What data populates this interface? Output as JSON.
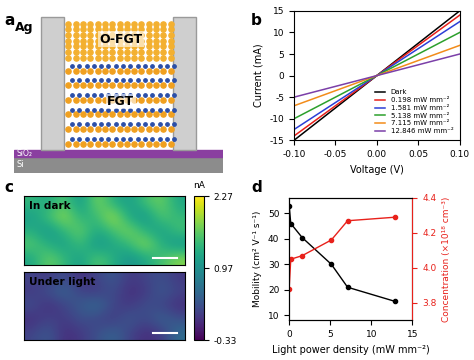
{
  "panel_labels": [
    "a",
    "b",
    "c",
    "d"
  ],
  "diagram": {
    "labels": {
      "ag": "Ag",
      "ofgt": "O-FGT",
      "fgt": "FGT",
      "sio2": "SiO₂",
      "si": "Si"
    }
  },
  "chart_data": [
    {
      "type": "line",
      "x": [
        -0.1,
        -0.05,
        0,
        0.05,
        0.1
      ],
      "xlabel": "Voltage (V)",
      "ylabel": "Current (mA)",
      "xlim": [
        -0.1,
        0.1
      ],
      "xticks": [
        {
          "value": -0.1,
          "label": "-0.10"
        },
        {
          "value": -0.05,
          "label": "-0.05"
        },
        {
          "value": 0,
          "label": "0.00"
        },
        {
          "value": 0.05,
          "label": "0.05"
        },
        {
          "value": 0.1,
          "label": "0.10"
        }
      ],
      "ylim": [
        -15,
        15
      ],
      "yticks": [
        -15,
        -10,
        -5,
        0,
        5,
        10,
        15
      ],
      "legend": "lower right",
      "series": [
        {
          "name": "Dark",
          "color": "#000000",
          "values": [
            -15.0,
            -7.5,
            0,
            7.5,
            15.0
          ]
        },
        {
          "name": "0.198 mW mm⁻²",
          "color": "#e8211b",
          "values": [
            -14.0,
            -7.0,
            0,
            7.0,
            14.0
          ]
        },
        {
          "name": "1.581 mW mm⁻²",
          "color": "#2c3fd6",
          "values": [
            -12.5,
            -6.25,
            0,
            6.25,
            12.5
          ]
        },
        {
          "name": "5.138 mW mm⁻²",
          "color": "#2ca02c",
          "values": [
            -10.0,
            -5.0,
            0,
            5.0,
            10.0
          ]
        },
        {
          "name": "7.115 mW mm⁻²",
          "color": "#f28c1a",
          "values": [
            -7.0,
            -3.5,
            0,
            3.5,
            7.0
          ]
        },
        {
          "name": "12.846 mW mm⁻²",
          "color": "#7b3fa8",
          "values": [
            -5.0,
            -2.5,
            0,
            2.5,
            5.0
          ]
        }
      ]
    },
    {
      "type": "heatmap",
      "maps": [
        {
          "title": "In dark",
          "cells": [
            [
              1.4,
              1.2,
              1.6,
              1.0,
              1.8,
              1.3,
              1.1,
              1.5,
              1.7,
              1.2
            ],
            [
              1.1,
              1.5,
              1.9,
              1.3,
              1.4,
              2.0,
              1.2,
              1.0,
              1.6,
              1.4
            ],
            [
              1.3,
              1.0,
              1.4,
              1.7,
              1.2,
              1.5,
              1.8,
              1.3,
              1.1,
              1.5
            ],
            [
              1.6,
              1.3,
              1.1,
              1.5,
              1.0,
              1.2,
              1.4,
              1.9,
              1.3,
              1.0
            ],
            [
              1.2,
              1.7,
              1.4,
              1.1,
              1.6,
              1.3,
              1.0,
              1.2,
              1.5,
              1.8
            ]
          ]
        },
        {
          "title": "Under light",
          "cells": [
            [
              0.2,
              0.1,
              0.3,
              0.0,
              0.2,
              0.4,
              0.1,
              0.2,
              0.3,
              0.1
            ],
            [
              0.1,
              0.3,
              0.5,
              0.2,
              0.1,
              0.3,
              0.0,
              0.1,
              0.4,
              0.2
            ],
            [
              0.3,
              0.0,
              0.2,
              0.4,
              0.6,
              0.2,
              0.1,
              0.3,
              0.2,
              0.0
            ],
            [
              0.0,
              0.2,
              0.1,
              0.3,
              0.2,
              0.1,
              0.4,
              0.2,
              0.5,
              0.3
            ],
            [
              0.2,
              0.4,
              0.0,
              0.1,
              0.3,
              0.5,
              0.2,
              0.0,
              0.1,
              0.6
            ]
          ]
        }
      ],
      "colorbar": {
        "label": "nA",
        "range": [
          -0.33,
          2.27
        ],
        "ticks": [
          2.27,
          0.97,
          -0.33
        ]
      }
    },
    {
      "type": "line",
      "marker": "o",
      "x": [
        0,
        0.198,
        1.581,
        5.138,
        7.115,
        12.846
      ],
      "xlabel": "Light power density (mW mm⁻²)",
      "ylabel": "Mobility (cm² V⁻¹ s⁻¹)",
      "y2label": "Concentration (×10¹⁸ cm⁻³)",
      "xlim": [
        0,
        15
      ],
      "xticks": [
        0,
        5,
        10,
        15
      ],
      "ylim": [
        8,
        56
      ],
      "yticks": [
        10,
        20,
        30,
        40,
        50
      ],
      "y2lim": [
        3.7,
        4.4
      ],
      "y2ticks": [
        3.8,
        4.0,
        4.2,
        4.4
      ],
      "series": [
        {
          "color": "#000000",
          "values": [
            53,
            46,
            40.5,
            30,
            21,
            15.5
          ]
        },
        {
          "color": "#e8211b",
          "axis": "y2",
          "values": [
            3.88,
            4.05,
            4.07,
            4.16,
            4.27,
            4.29
          ]
        }
      ]
    }
  ]
}
